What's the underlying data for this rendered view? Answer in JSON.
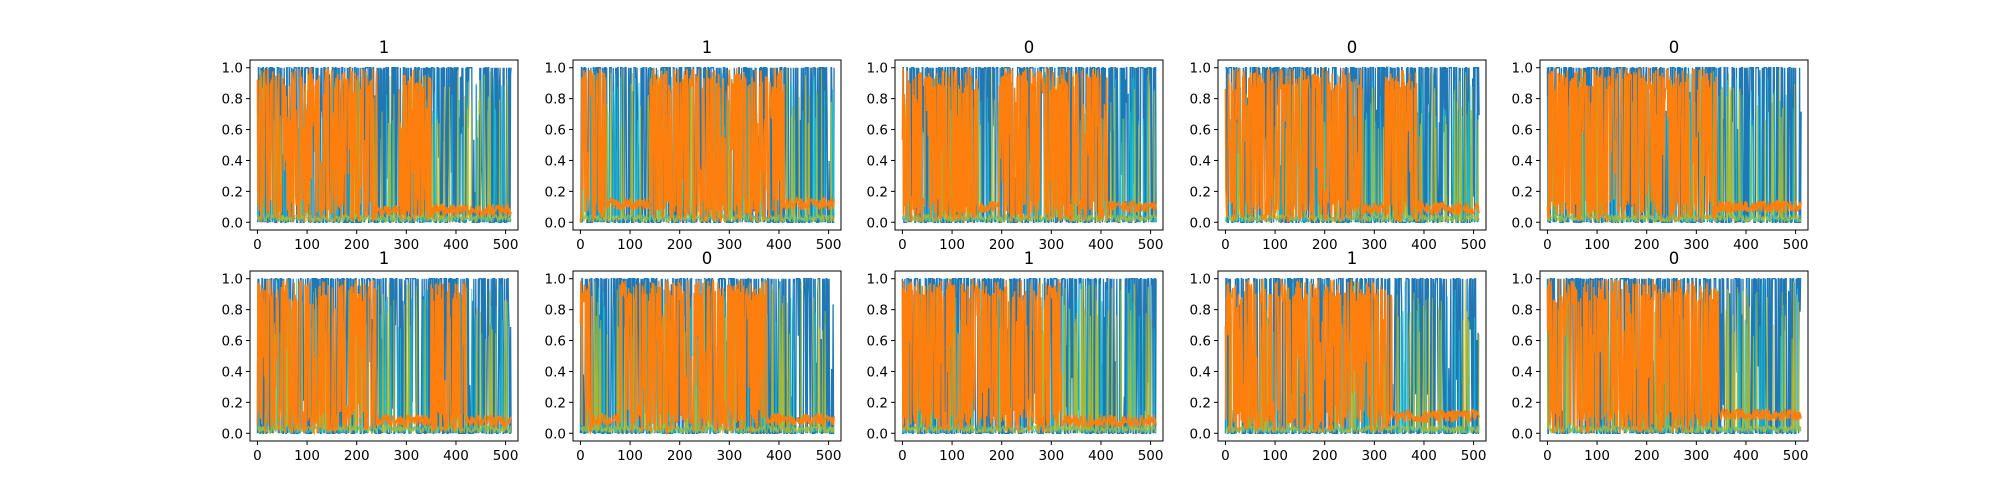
{
  "chart_data": [
    {
      "type": "line",
      "title": "1",
      "xlim": [
        -15,
        525
      ],
      "ylim": [
        -0.05,
        1.05
      ],
      "x_ticks": [
        "0",
        "100",
        "200",
        "300",
        "400",
        "500"
      ],
      "y_ticks": [
        "0.0",
        "0.2",
        "0.4",
        "0.6",
        "0.8",
        "1.0"
      ],
      "orange_active_ranges": [
        [
          0,
          240
        ],
        [
          285,
          350
        ]
      ],
      "tail_level": 0.08,
      "colors": {
        "primary": "#1f77b4",
        "secondary": "#ff7f0e",
        "accent": "#17becf",
        "accent2": "#bcbd22"
      }
    },
    {
      "type": "line",
      "title": "1",
      "xlim": [
        -15,
        525
      ],
      "ylim": [
        -0.05,
        1.05
      ],
      "x_ticks": [
        "0",
        "100",
        "200",
        "300",
        "400",
        "500"
      ],
      "y_ticks": [
        "0.0",
        "0.2",
        "0.4",
        "0.6",
        "0.8",
        "1.0"
      ],
      "orange_active_ranges": [
        [
          0,
          50
        ],
        [
          140,
          410
        ]
      ],
      "tail_level": 0.12,
      "colors": {
        "primary": "#1f77b4",
        "secondary": "#ff7f0e",
        "accent": "#17becf",
        "accent2": "#bcbd22"
      }
    },
    {
      "type": "line",
      "title": "0",
      "xlim": [
        -15,
        525
      ],
      "ylim": [
        -0.05,
        1.05
      ],
      "x_ticks": [
        "0",
        "100",
        "200",
        "300",
        "400",
        "500"
      ],
      "y_ticks": [
        "0.0",
        "0.2",
        "0.4",
        "0.6",
        "0.8",
        "1.0"
      ],
      "orange_active_ranges": [
        [
          0,
          150
        ],
        [
          195,
          415
        ]
      ],
      "tail_level": 0.1,
      "colors": {
        "primary": "#1f77b4",
        "secondary": "#ff7f0e",
        "accent": "#17becf",
        "accent2": "#bcbd22"
      }
    },
    {
      "type": "line",
      "title": "0",
      "xlim": [
        -15,
        525
      ],
      "ylim": [
        -0.05,
        1.05
      ],
      "x_ticks": [
        "0",
        "100",
        "200",
        "300",
        "400",
        "500"
      ],
      "y_ticks": [
        "0.0",
        "0.2",
        "0.4",
        "0.6",
        "0.8",
        "1.0"
      ],
      "orange_active_ranges": [
        [
          0,
          275
        ],
        [
          320,
          395
        ]
      ],
      "tail_level": 0.09,
      "colors": {
        "primary": "#1f77b4",
        "secondary": "#ff7f0e",
        "accent": "#17becf",
        "accent2": "#bcbd22"
      }
    },
    {
      "type": "line",
      "title": "0",
      "xlim": [
        -15,
        525
      ],
      "ylim": [
        -0.05,
        1.05
      ],
      "x_ticks": [
        "0",
        "100",
        "200",
        "300",
        "400",
        "500"
      ],
      "y_ticks": [
        "0.0",
        "0.2",
        "0.4",
        "0.6",
        "0.8",
        "1.0"
      ],
      "orange_active_ranges": [
        [
          0,
          340
        ]
      ],
      "tail_level": 0.1,
      "colors": {
        "primary": "#1f77b4",
        "secondary": "#ff7f0e",
        "accent": "#17becf",
        "accent2": "#bcbd22"
      }
    },
    {
      "type": "line",
      "title": "1",
      "xlim": [
        -15,
        525
      ],
      "ylim": [
        -0.05,
        1.05
      ],
      "x_ticks": [
        "0",
        "100",
        "200",
        "300",
        "400",
        "500"
      ],
      "y_ticks": [
        "0.0",
        "0.2",
        "0.4",
        "0.6",
        "0.8",
        "1.0"
      ],
      "orange_active_ranges": [
        [
          0,
          240
        ],
        [
          350,
          420
        ]
      ],
      "tail_level": 0.08,
      "colors": {
        "primary": "#1f77b4",
        "secondary": "#ff7f0e",
        "accent": "#17becf",
        "accent2": "#bcbd22"
      }
    },
    {
      "type": "line",
      "title": "0",
      "xlim": [
        -15,
        525
      ],
      "ylim": [
        -0.05,
        1.05
      ],
      "x_ticks": [
        "0",
        "100",
        "200",
        "300",
        "400",
        "500"
      ],
      "y_ticks": [
        "0.0",
        "0.2",
        "0.4",
        "0.6",
        "0.8",
        "1.0"
      ],
      "orange_active_ranges": [
        [
          0,
          25
        ],
        [
          80,
          375
        ]
      ],
      "tail_level": 0.09,
      "colors": {
        "primary": "#1f77b4",
        "secondary": "#ff7f0e",
        "accent": "#17becf",
        "accent2": "#bcbd22"
      }
    },
    {
      "type": "line",
      "title": "1",
      "xlim": [
        -15,
        525
      ],
      "ylim": [
        -0.05,
        1.05
      ],
      "x_ticks": [
        "0",
        "100",
        "200",
        "300",
        "400",
        "500"
      ],
      "y_ticks": [
        "0.0",
        "0.2",
        "0.4",
        "0.6",
        "0.8",
        "1.0"
      ],
      "orange_active_ranges": [
        [
          0,
          320
        ]
      ],
      "tail_level": 0.08,
      "colors": {
        "primary": "#1f77b4",
        "secondary": "#ff7f0e",
        "accent": "#17becf",
        "accent2": "#bcbd22"
      }
    },
    {
      "type": "line",
      "title": "1",
      "xlim": [
        -15,
        525
      ],
      "ylim": [
        -0.05,
        1.05
      ],
      "x_ticks": [
        "0",
        "100",
        "200",
        "300",
        "400",
        "500"
      ],
      "y_ticks": [
        "0.0",
        "0.2",
        "0.4",
        "0.6",
        "0.8",
        "1.0"
      ],
      "orange_active_ranges": [
        [
          0,
          335
        ]
      ],
      "tail_level": 0.11,
      "colors": {
        "primary": "#1f77b4",
        "secondary": "#ff7f0e",
        "accent": "#17becf",
        "accent2": "#bcbd22"
      }
    },
    {
      "type": "line",
      "title": "0",
      "xlim": [
        -15,
        525
      ],
      "ylim": [
        -0.05,
        1.05
      ],
      "x_ticks": [
        "0",
        "100",
        "200",
        "300",
        "400",
        "500"
      ],
      "y_ticks": [
        "0.0",
        "0.2",
        "0.4",
        "0.6",
        "0.8",
        "1.0"
      ],
      "orange_active_ranges": [
        [
          0,
          345
        ]
      ],
      "tail_level": 0.12,
      "colors": {
        "primary": "#1f77b4",
        "secondary": "#ff7f0e",
        "accent": "#17becf",
        "accent2": "#bcbd22"
      }
    }
  ]
}
